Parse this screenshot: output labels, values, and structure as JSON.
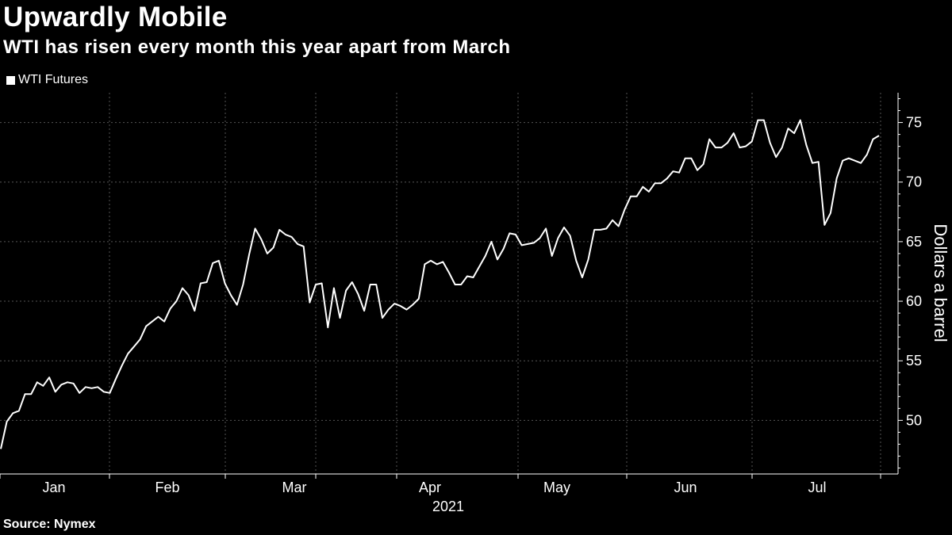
{
  "header": {
    "title": "Upwardly Mobile",
    "subtitle": "WTI has risen every month this year apart from March"
  },
  "footer": {
    "source": "Source: Nymex"
  },
  "colors": {
    "background": "#000000",
    "line": "#ffffff",
    "grid": "#555555"
  },
  "chart_data": {
    "type": "line",
    "title": "Upwardly Mobile",
    "subtitle": "WTI has risen every month this year apart from March",
    "xlabel": "2021",
    "ylabel": "Dollars a barrel",
    "ylim": [
      45.5,
      77.5
    ],
    "yticks": [
      50,
      55,
      60,
      65,
      70,
      75
    ],
    "yticklabels": [
      "50",
      "55",
      "60",
      "65",
      "70",
      "75"
    ],
    "xticks": [
      "Jan",
      "Feb",
      "Mar",
      "Apr",
      "May",
      "Jun",
      "Jul"
    ],
    "grid": true,
    "legend": "top-left",
    "series": [
      {
        "name": "WTI Futures",
        "values": [
          47.6,
          49.9,
          50.6,
          50.8,
          52.2,
          52.2,
          53.2,
          52.9,
          53.6,
          52.4,
          53.0,
          53.2,
          53.1,
          52.3,
          52.8,
          52.7,
          52.8,
          52.4,
          52.3,
          53.5,
          54.6,
          55.6,
          56.2,
          56.8,
          57.9,
          58.3,
          58.7,
          58.3,
          59.4,
          60.0,
          61.1,
          60.5,
          59.2,
          61.5,
          61.6,
          63.2,
          63.4,
          61.5,
          60.5,
          59.7,
          61.4,
          63.9,
          66.1,
          65.2,
          64.0,
          64.5,
          66.0,
          65.6,
          65.4,
          64.8,
          64.6,
          59.9,
          61.4,
          61.5,
          57.8,
          61.1,
          58.6,
          60.9,
          61.6,
          60.6,
          59.2,
          61.4,
          61.4,
          58.6,
          59.3,
          59.8,
          59.6,
          59.3,
          59.7,
          60.2,
          63.1,
          63.4,
          63.1,
          63.3,
          62.4,
          61.4,
          61.4,
          62.1,
          62.0,
          62.9,
          63.8,
          65.0,
          63.5,
          64.4,
          65.7,
          65.6,
          64.7,
          64.8,
          64.9,
          65.3,
          66.1,
          63.8,
          65.3,
          66.2,
          65.5,
          63.4,
          62.0,
          63.5,
          66.0,
          66.0,
          66.1,
          66.8,
          66.3,
          67.7,
          68.8,
          68.8,
          69.6,
          69.2,
          69.9,
          69.9,
          70.3,
          70.9,
          70.8,
          72.0,
          72.0,
          71.0,
          71.5,
          73.6,
          72.9,
          72.9,
          73.3,
          74.1,
          72.9,
          73.0,
          73.4,
          75.2,
          75.2,
          73.3,
          72.1,
          72.9,
          74.5,
          74.1,
          75.2,
          73.1,
          71.6,
          71.7,
          66.4,
          67.4,
          70.3,
          71.8,
          72.0,
          71.8,
          71.6,
          72.3,
          73.6,
          73.9
        ]
      }
    ]
  }
}
